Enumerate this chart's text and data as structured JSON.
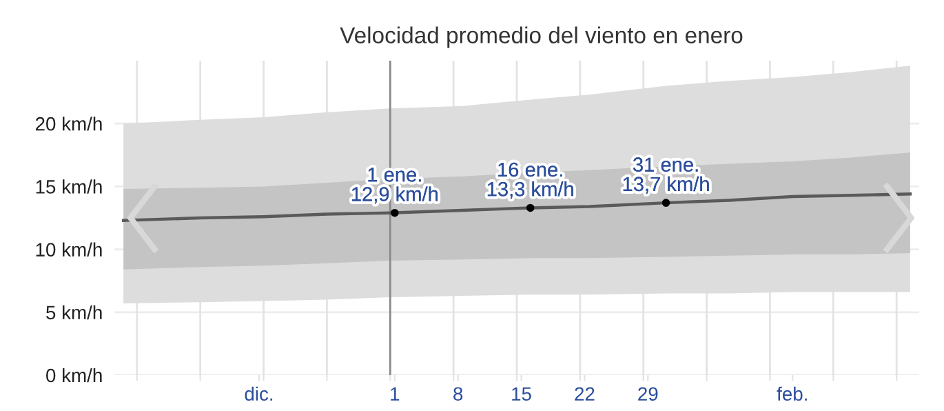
{
  "chart_data": {
    "type": "line",
    "title": "Velocidad promedio del viento en enero",
    "x": [
      -29,
      -20.5,
      -13.5,
      -6.5,
      0.5,
      8.5,
      16,
      22.5,
      31,
      38,
      45,
      51.5,
      58
    ],
    "series": [
      {
        "color": "#dddddd",
        "values": [
          null,
          null,
          null,
          null,
          null,
          null,
          null,
          null,
          null,
          null,
          null,
          null,
          null
        ],
        "lower": [
          5.7,
          5.8,
          5.9,
          6.0,
          6.2,
          6.3,
          6.4,
          6.4,
          6.5,
          6.5,
          6.6,
          6.6,
          6.6
        ],
        "upper": [
          20.0,
          20.3,
          20.5,
          20.9,
          21.2,
          21.4,
          21.9,
          22.3,
          23.0,
          23.4,
          23.7,
          24.1,
          24.6
        ]
      },
      {
        "color": "#5a5a5a",
        "values": [
          12.3,
          12.5,
          12.6,
          12.8,
          12.9,
          13.1,
          13.3,
          13.4,
          13.7,
          13.9,
          14.2,
          14.3,
          14.4
        ],
        "lower": [
          8.4,
          8.6,
          8.7,
          8.9,
          9.1,
          9.2,
          9.3,
          9.3,
          9.4,
          9.5,
          9.6,
          9.6,
          9.7
        ],
        "upper": [
          14.8,
          14.9,
          15.0,
          15.3,
          15.6,
          15.8,
          16.1,
          16.3,
          16.6,
          16.8,
          17.0,
          17.3,
          17.7
        ]
      },
      {
        "type": "scatter",
        "color": "#000000",
        "x": [
          1,
          16,
          31
        ],
        "values": [
          12.9,
          13.3,
          13.7
        ]
      }
    ],
    "xlim": [
      -30,
      59
    ],
    "xticks": [
      {
        "value": -27.5,
        "label": null
      },
      {
        "value": -20.5,
        "label": null
      },
      {
        "value": -14,
        "label": "dic."
      },
      {
        "value": -13.5,
        "label": null
      },
      {
        "value": -6.5,
        "label": null
      },
      {
        "value": 0.5,
        "label": null
      },
      1,
      {
        "value": 7.5,
        "label": null
      },
      8,
      {
        "value": 14.5,
        "label": null
      },
      15,
      {
        "value": 21.5,
        "label": null
      },
      22,
      {
        "value": 28.5,
        "label": null
      },
      29,
      {
        "value": 35.5,
        "label": null
      },
      {
        "value": 42.5,
        "label": null
      },
      {
        "value": 45,
        "label": "feb."
      },
      {
        "value": 49.5,
        "label": null
      },
      {
        "value": 56.5,
        "label": null
      }
    ],
    "ylim": [
      0,
      25
    ],
    "yticks": [
      {
        "value": 0,
        "label": "0 km/h"
      },
      {
        "value": 5,
        "label": "5 km/h"
      },
      {
        "value": 10,
        "label": "10 km/h"
      },
      {
        "value": 15,
        "label": "15 km/h"
      },
      {
        "value": 20,
        "label": "20 km/h"
      }
    ],
    "grid": true,
    "ref_lines": [
      {
        "axis": "x",
        "value": 0.5,
        "color": "#8a8a8a"
      }
    ],
    "annotations": [
      {
        "text": "1 ene.\n12,9 km/h",
        "x": 1,
        "y": 12.9
      },
      {
        "text": "16 ene.\n13,3 km/h",
        "x": 16,
        "y": 13.3
      },
      {
        "text": "31 ene.\n13,7 km/h",
        "x": 31,
        "y": 13.7
      }
    ]
  }
}
